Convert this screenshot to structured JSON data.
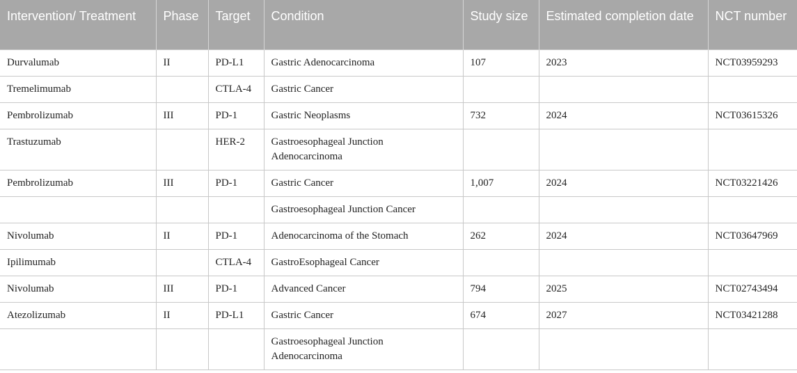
{
  "table": {
    "headers": [
      "Intervention/ Treatment",
      "Phase",
      "Target",
      "Condition",
      "Study size",
      "Estimated completion date",
      "NCT number"
    ],
    "rows": [
      [
        "Durvalumab",
        "II",
        "PD-L1",
        "Gastric Adenocarcinoma",
        "107",
        "2023",
        "NCT03959293"
      ],
      [
        "Tremelimumab",
        "",
        "CTLA-4",
        "Gastric Cancer",
        "",
        "",
        ""
      ],
      [
        "Pembrolizumab",
        "III",
        "PD-1",
        "Gastric Neoplasms",
        "732",
        "2024",
        "NCT03615326"
      ],
      [
        "Trastuzumab",
        "",
        "HER-2",
        "Gastroesophageal Junction Adenocarcinoma",
        "",
        "",
        ""
      ],
      [
        "Pembrolizumab",
        "III",
        "PD-1",
        "Gastric Cancer",
        "1,007",
        "2024",
        "NCT03221426"
      ],
      [
        "",
        "",
        "",
        "Gastroesophageal Junction Cancer",
        "",
        "",
        ""
      ],
      [
        "Nivolumab",
        "II",
        "PD-1",
        "Adenocarcinoma of the Stomach",
        "262",
        "2024",
        "NCT03647969"
      ],
      [
        "Ipilimumab",
        "",
        "CTLA-4",
        "GastroEsophageal Cancer",
        "",
        "",
        ""
      ],
      [
        "Nivolumab",
        "III",
        "PD-1",
        "Advanced Cancer",
        "794",
        "2025",
        "NCT02743494"
      ],
      [
        "Atezolizumab",
        "II",
        "PD-L1",
        "Gastric Cancer",
        "674",
        "2027",
        "NCT03421288"
      ],
      [
        "",
        "",
        "",
        "Gastroesophageal Junction Adenocarcinoma",
        "",
        "",
        ""
      ]
    ]
  }
}
